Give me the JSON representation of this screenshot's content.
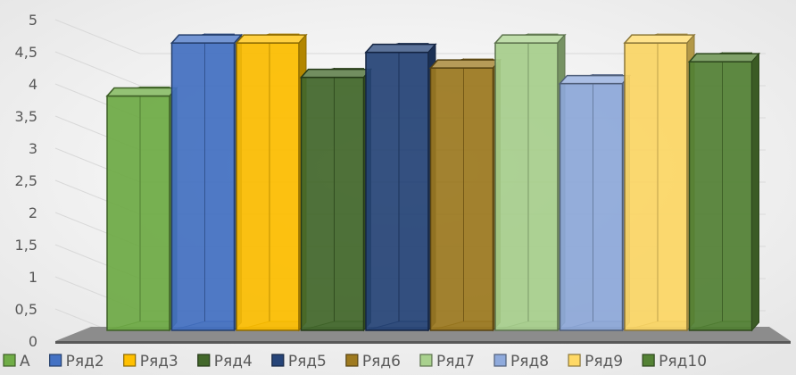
{
  "chart_data": {
    "type": "bar",
    "title": "",
    "xlabel": "",
    "ylabel": "",
    "ylim": [
      0,
      5
    ],
    "yticks": [
      "0",
      "0,5",
      "1",
      "1,5",
      "2",
      "2,5",
      "3",
      "3,5",
      "4",
      "4,5",
      "5"
    ],
    "grid": true,
    "legend_position": "bottom",
    "series": [
      {
        "name": "А",
        "values": [
          3.75
        ],
        "color": "#70ad47"
      },
      {
        "name": "Ряд2",
        "values": [
          4.6
        ],
        "color": "#4472c4"
      },
      {
        "name": "Ряд3",
        "values": [
          4.6
        ],
        "color": "#ffc000"
      },
      {
        "name": "Ряд4",
        "values": [
          4.05
        ],
        "color": "#43682b"
      },
      {
        "name": "Ряд5",
        "values": [
          4.45
        ],
        "color": "#264478"
      },
      {
        "name": "Ряд6",
        "values": [
          4.2
        ],
        "color": "#9e7a20"
      },
      {
        "name": "Ряд7",
        "values": [
          4.6
        ],
        "color": "#a9d18e"
      },
      {
        "name": "Ряд8",
        "values": [
          3.95
        ],
        "color": "#8faadc"
      },
      {
        "name": "Ряд9",
        "values": [
          4.6
        ],
        "color": "#ffd966"
      },
      {
        "name": "Ряд10",
        "values": [
          4.3
        ],
        "color": "#548235"
      }
    ]
  }
}
